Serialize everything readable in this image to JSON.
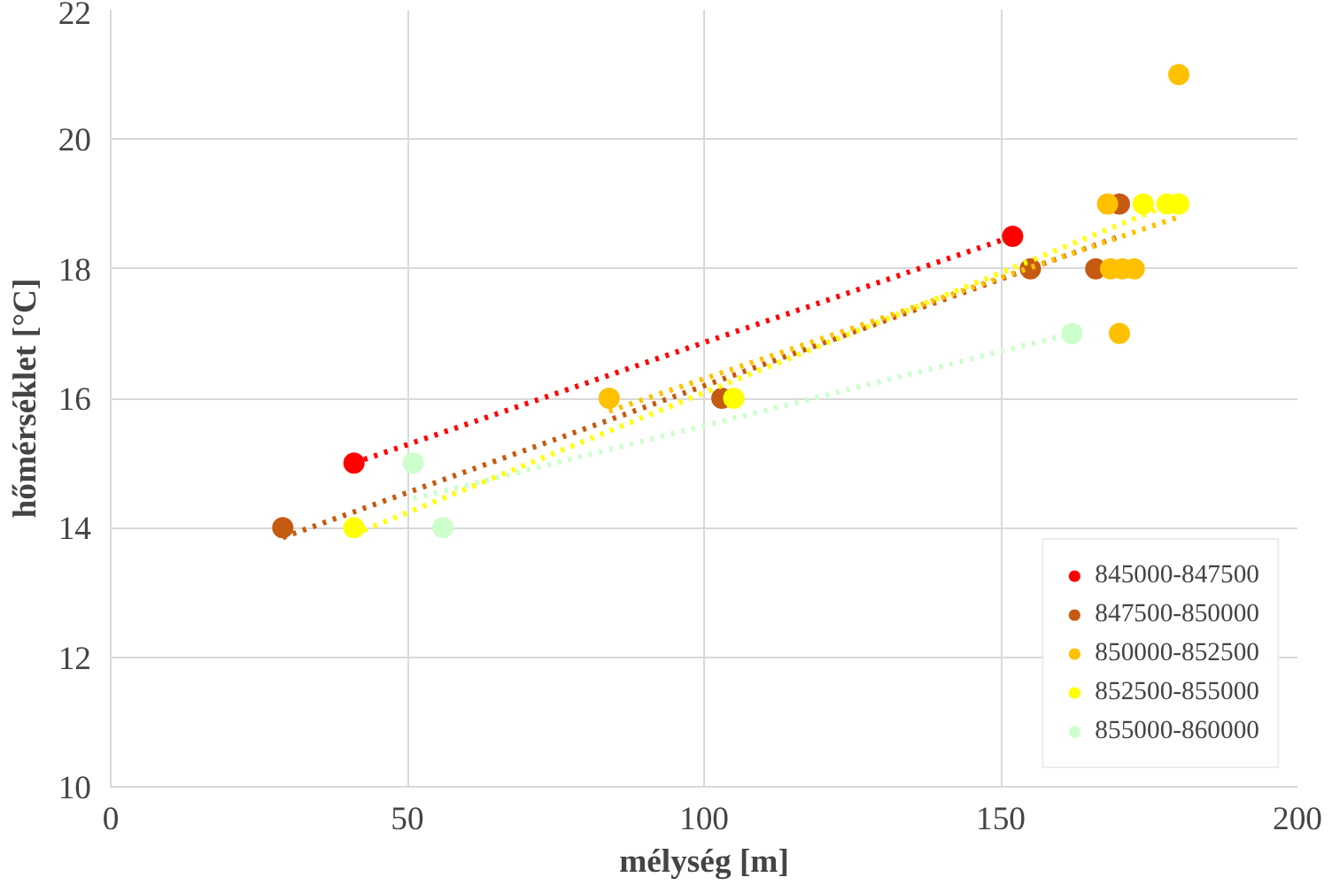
{
  "chart_data": {
    "type": "scatter",
    "xlabel": "mélység [m]",
    "ylabel": "hőmérséklet [°C]",
    "xlim": [
      0,
      200
    ],
    "ylim": [
      10,
      22
    ],
    "xticks": [
      0,
      50,
      100,
      150,
      200
    ],
    "yticks": [
      10,
      12,
      14,
      16,
      18,
      20,
      22
    ],
    "grid": true,
    "legend": "bottom right",
    "marker": "circle",
    "series": [
      {
        "name": "845000-847500",
        "color": "#ff0000",
        "x": [
          41,
          152
        ],
        "values": [
          15,
          18.5
        ]
      },
      {
        "name": "847500-850000",
        "color": "#c55a11",
        "x": [
          29,
          103,
          155,
          166,
          170
        ],
        "values": [
          14,
          16,
          18,
          18,
          19
        ]
      },
      {
        "name": "850000-852500",
        "color": "#ffc000",
        "x": [
          84,
          180,
          168,
          168.5,
          170.5,
          172.5,
          170
        ],
        "values": [
          16,
          21,
          19,
          18,
          18,
          18,
          17
        ]
      },
      {
        "name": "852500-855000",
        "color": "#ffff00",
        "x": [
          41,
          105,
          174,
          178,
          180
        ],
        "values": [
          14,
          16,
          19,
          19,
          19
        ]
      },
      {
        "name": "855000-860000",
        "color": "#ccffcc",
        "x": [
          51,
          56,
          162
        ],
        "values": [
          15,
          14,
          17
        ]
      },
      {
        "type": "line",
        "line_style": "dotted",
        "marker": "none",
        "color": "#ff0000",
        "x": [
          41,
          152
        ],
        "values": [
          15,
          18.5
        ]
      },
      {
        "type": "line",
        "line_style": "dotted",
        "marker": "none",
        "color": "#c55a11",
        "x": [
          29,
          170
        ],
        "values": [
          13.85,
          18.5
        ]
      },
      {
        "type": "line",
        "line_style": "dotted",
        "marker": "none",
        "color": "#ffc000",
        "x": [
          84,
          180
        ],
        "values": [
          15.8,
          18.8
        ]
      },
      {
        "type": "line",
        "line_style": "dotted",
        "marker": "none",
        "color": "#ffff00",
        "x": [
          41,
          180
        ],
        "values": [
          13.9,
          19.05
        ]
      },
      {
        "type": "line",
        "line_style": "dotted",
        "marker": "none",
        "color": "#ccffcc",
        "x": [
          51,
          162
        ],
        "values": [
          14.45,
          17
        ]
      }
    ]
  }
}
